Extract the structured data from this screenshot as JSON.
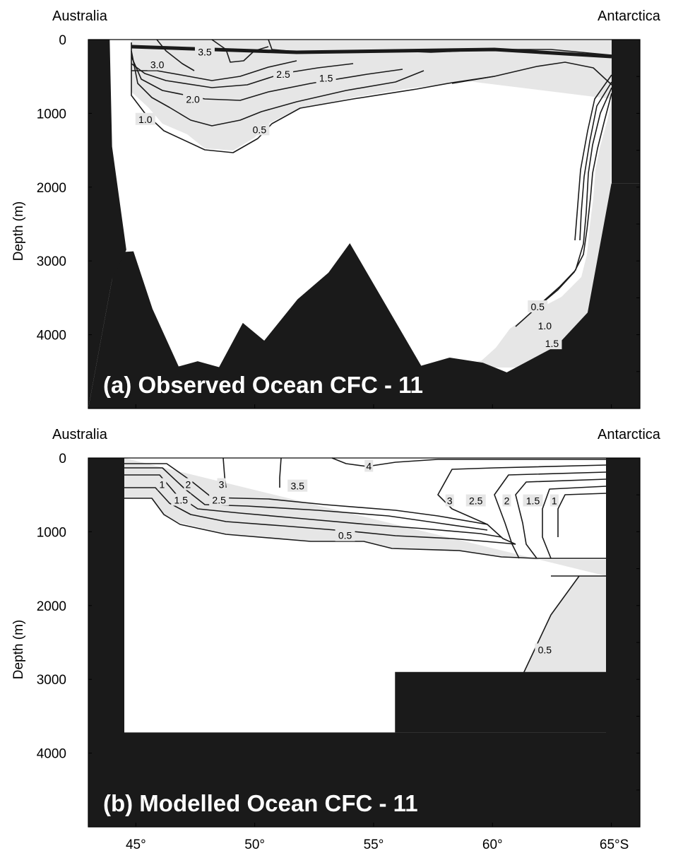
{
  "chart_data": [
    {
      "type": "contour",
      "panel": "a",
      "title": "(a) Observed Ocean CFC - 11",
      "left_label": "Australia",
      "right_label": "Antarctica",
      "ylabel": "Depth (m)",
      "ylim": [
        0,
        5000
      ],
      "y_inverted": true,
      "yticks": [
        "0",
        "1000",
        "2000",
        "3000",
        "4000"
      ],
      "xlim": [
        43,
        66.2
      ],
      "contour_levels": [
        0.5,
        1.0,
        1.5,
        2.0,
        2.5,
        3.0,
        3.5
      ],
      "contour_labels": [
        {
          "text": "3.5",
          "lat": 47.9,
          "depth": 170
        },
        {
          "text": "3.0",
          "lat": 45.9,
          "depth": 340
        },
        {
          "text": "2.5",
          "lat": 51.2,
          "depth": 470
        },
        {
          "text": "1.5",
          "lat": 53.0,
          "depth": 520
        },
        {
          "text": "2.0",
          "lat": 47.4,
          "depth": 810
        },
        {
          "text": "1.0",
          "lat": 45.4,
          "depth": 1080
        },
        {
          "text": "0.5",
          "lat": 50.2,
          "depth": 1220
        },
        {
          "text": "0.5",
          "lat": 61.9,
          "depth": 3620
        },
        {
          "text": "1.0",
          "lat": 62.2,
          "depth": 3880
        },
        {
          "text": "1.5",
          "lat": 62.5,
          "depth": 4120
        }
      ],
      "bottom_topography": [
        {
          "lat": 44.0,
          "depth": 3250
        },
        {
          "lat": 44.4,
          "depth": 2880
        },
        {
          "lat": 44.9,
          "depth": 2870
        },
        {
          "lat": 45.7,
          "depth": 3650
        },
        {
          "lat": 46.8,
          "depth": 4430
        },
        {
          "lat": 47.6,
          "depth": 4360
        },
        {
          "lat": 48.5,
          "depth": 4440
        },
        {
          "lat": 49.5,
          "depth": 3840
        },
        {
          "lat": 50.4,
          "depth": 4080
        },
        {
          "lat": 51.8,
          "depth": 3520
        },
        {
          "lat": 53.1,
          "depth": 3160
        },
        {
          "lat": 54.0,
          "depth": 2760
        },
        {
          "lat": 57.0,
          "depth": 4420
        },
        {
          "lat": 58.2,
          "depth": 4310
        },
        {
          "lat": 59.6,
          "depth": 4380
        },
        {
          "lat": 60.6,
          "depth": 4510
        },
        {
          "lat": 62.7,
          "depth": 4150
        },
        {
          "lat": 64.0,
          "depth": 3700
        },
        {
          "lat": 65.0,
          "depth": 1950
        }
      ],
      "left_coast": [
        {
          "lat": 43.0,
          "depth": 0
        },
        {
          "lat": 43.9,
          "depth": 0
        },
        {
          "lat": 44.0,
          "depth": 1450
        },
        {
          "lat": 44.6,
          "depth": 2850
        }
      ]
    },
    {
      "type": "contour",
      "panel": "b",
      "title": "(b) Modelled Ocean CFC - 11",
      "left_label": "Australia",
      "right_label": "Antarctica",
      "ylabel": "Depth (m)",
      "ylim": [
        0,
        5000
      ],
      "y_inverted": true,
      "yticks": [
        "0",
        "1000",
        "2000",
        "3000",
        "4000"
      ],
      "xlim": [
        43,
        66.2
      ],
      "xticks": [
        "45°",
        "50°",
        "55°",
        "60°",
        "65°S"
      ],
      "xtick_values": [
        45,
        50,
        55,
        60,
        65
      ],
      "contour_levels": [
        0.5,
        1,
        1.5,
        2,
        2.5,
        3,
        3.5,
        4
      ],
      "contour_labels": [
        {
          "text": "4",
          "lat": 54.8,
          "depth": 110
        },
        {
          "text": "1",
          "lat": 46.1,
          "depth": 360
        },
        {
          "text": "2",
          "lat": 47.2,
          "depth": 360
        },
        {
          "text": "3",
          "lat": 48.6,
          "depth": 360
        },
        {
          "text": "3.5",
          "lat": 51.8,
          "depth": 380
        },
        {
          "text": "1.5",
          "lat": 46.9,
          "depth": 570
        },
        {
          "text": "2.5",
          "lat": 48.5,
          "depth": 570
        },
        {
          "text": "0.5",
          "lat": 53.8,
          "depth": 1050
        },
        {
          "text": "3",
          "lat": 58.2,
          "depth": 580
        },
        {
          "text": "2.5",
          "lat": 59.3,
          "depth": 580
        },
        {
          "text": "2",
          "lat": 60.6,
          "depth": 580
        },
        {
          "text": "1.5",
          "lat": 61.7,
          "depth": 580
        },
        {
          "text": "1",
          "lat": 62.6,
          "depth": 580
        },
        {
          "text": "0.5",
          "lat": 62.2,
          "depth": 2600
        }
      ],
      "model_bottom": [
        {
          "lat": 44.6,
          "depth": 3720
        },
        {
          "lat": 55.9,
          "depth": 3720
        },
        {
          "lat": 55.9,
          "depth": 2900
        },
        {
          "lat": 64.7,
          "depth": 2900
        }
      ]
    }
  ]
}
